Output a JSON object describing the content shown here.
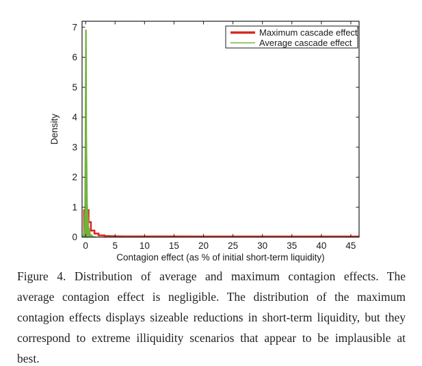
{
  "chart_data": {
    "type": "area",
    "title": "",
    "xlabel": "Contagion effect (as % of initial short-term liquidity)",
    "ylabel": "Density",
    "xlim": [
      -0.6,
      46.4
    ],
    "ylim": [
      0,
      7.2
    ],
    "x_ticks": [
      0,
      5,
      10,
      15,
      20,
      25,
      30,
      35,
      40,
      45
    ],
    "y_ticks": [
      0,
      1,
      2,
      3,
      4,
      5,
      6,
      7
    ],
    "grid": false,
    "legend_position": "top-right",
    "axis_color": "#1a1a1a",
    "series": [
      {
        "name": "Maximum cascade effect",
        "color": "#d8291f",
        "style": "step-line",
        "line_width": 2.6,
        "points": [
          [
            -0.25,
            0
          ],
          [
            -0.25,
            0.9
          ],
          [
            0.5,
            0.9
          ],
          [
            0.5,
            0.5
          ],
          [
            0.9,
            0.5
          ],
          [
            0.9,
            0.22
          ],
          [
            1.5,
            0.22
          ],
          [
            1.5,
            0.12
          ],
          [
            2.2,
            0.12
          ],
          [
            2.2,
            0.06
          ],
          [
            3.2,
            0.06
          ],
          [
            3.2,
            0.04
          ],
          [
            4.5,
            0.033
          ],
          [
            6.5,
            0.025
          ],
          [
            20,
            0.022
          ],
          [
            46.4,
            0.02
          ]
        ]
      },
      {
        "name": "Average cascade effect",
        "color": "#72b23c",
        "style": "filled-area",
        "line_width": 1.6,
        "points": [
          [
            -0.45,
            0
          ],
          [
            -0.25,
            0.2
          ],
          [
            -0.12,
            0.9
          ],
          [
            -0.05,
            3.3
          ],
          [
            0.02,
            6.9
          ],
          [
            0.1,
            6.9
          ],
          [
            0.16,
            3.3
          ],
          [
            0.28,
            1.1
          ],
          [
            0.5,
            0.35
          ],
          [
            0.8,
            0.1
          ],
          [
            1.3,
            0.02
          ],
          [
            1.8,
            0
          ]
        ]
      }
    ]
  },
  "caption": {
    "text": "Figure 4. Distribution of average and maximum contagion effects. The average contagion effect is negligible. The distribution of the maximum contagion effects displays sizeable reductions in short-term liquidity, but they correspond to extreme illiquidity scenarios that appear to be implausible at best."
  }
}
